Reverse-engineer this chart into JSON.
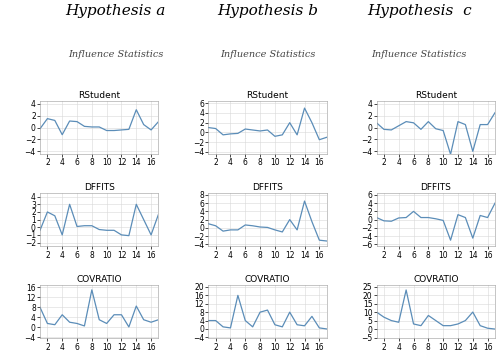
{
  "col_titles": [
    "Hypothesis a",
    "Hypothesis b",
    "Hypothesis  c"
  ],
  "subtitle": "Influence Statistics",
  "plot_titles": [
    "RStudent",
    "DFFITS",
    "COVRATIO"
  ],
  "x": [
    1,
    2,
    3,
    4,
    5,
    6,
    7,
    8,
    9,
    10,
    11,
    12,
    13,
    14,
    15,
    16,
    17
  ],
  "ha_rstudent": [
    -0.2,
    1.5,
    1.2,
    -1.2,
    1.1,
    1.0,
    0.2,
    0.1,
    0.1,
    -0.5,
    -0.5,
    -0.4,
    -0.3,
    3.0,
    0.5,
    -0.4,
    1.0
  ],
  "ha_dffits": [
    -0.4,
    2.0,
    1.5,
    -1.0,
    3.0,
    0.1,
    0.2,
    0.2,
    -0.3,
    -0.4,
    -0.4,
    -1.0,
    -1.1,
    3.0,
    1.0,
    -1.0,
    1.7
  ],
  "ha_covratio": [
    8.0,
    1.5,
    1.0,
    5.0,
    2.0,
    1.5,
    0.5,
    15.0,
    3.0,
    1.5,
    5.0,
    5.0,
    0.1,
    8.5,
    3.0,
    2.0,
    3.0
  ],
  "hb_rstudent": [
    1.0,
    0.8,
    -0.5,
    -0.3,
    -0.2,
    0.7,
    0.5,
    0.3,
    0.5,
    -0.8,
    -0.5,
    2.0,
    -0.5,
    5.0,
    2.0,
    -1.5,
    -1.0
  ],
  "hb_dffits": [
    1.0,
    0.5,
    -0.8,
    -0.5,
    -0.5,
    0.7,
    0.5,
    0.2,
    0.1,
    -0.5,
    -1.0,
    2.0,
    -0.5,
    6.5,
    1.5,
    -3.0,
    -3.2
  ],
  "hb_covratio": [
    4.0,
    4.0,
    1.0,
    0.5,
    16.0,
    4.0,
    1.0,
    8.0,
    9.0,
    2.0,
    1.0,
    8.0,
    2.0,
    1.5,
    6.0,
    0.5,
    0.0
  ],
  "hc_rstudent": [
    0.8,
    -0.3,
    -0.4,
    0.3,
    1.0,
    0.8,
    -0.3,
    1.0,
    -0.2,
    -0.5,
    -4.5,
    1.0,
    0.5,
    -4.0,
    0.5,
    0.5,
    2.5
  ],
  "hc_dffits": [
    0.5,
    -0.3,
    -0.4,
    0.4,
    0.5,
    2.0,
    0.5,
    0.5,
    0.2,
    -0.2,
    -5.0,
    1.2,
    0.5,
    -4.5,
    1.0,
    0.5,
    4.0
  ],
  "hc_covratio": [
    10.0,
    7.0,
    5.0,
    4.0,
    23.0,
    3.0,
    2.0,
    8.0,
    5.0,
    2.0,
    2.0,
    3.0,
    5.0,
    10.0,
    2.0,
    0.5,
    0.0
  ],
  "line_color": "#5b8db8",
  "bg_color": "#ffffff",
  "grid_color": "#d8d8d8",
  "title_fontsize": 11,
  "subtitle_fontsize": 7,
  "plot_title_fontsize": 6.5,
  "tick_fontsize": 5.5,
  "ytick_configs": {
    "ha_rs": [
      -4,
      -2,
      0,
      2,
      4
    ],
    "ha_df": [
      -2,
      -1,
      0,
      1,
      2,
      3,
      4
    ],
    "ha_cv": [
      -4,
      0,
      4,
      8,
      12,
      16
    ],
    "hb_rs": [
      -4,
      -2,
      0,
      2,
      4,
      6
    ],
    "hb_df": [
      -4,
      -2,
      0,
      2,
      4,
      6,
      8
    ],
    "hb_cv": [
      -4,
      0,
      4,
      8,
      12,
      16,
      20
    ],
    "hc_rs": [
      -4,
      -2,
      0,
      2,
      4
    ],
    "hc_df": [
      -6,
      -4,
      -2,
      0,
      2,
      4,
      6
    ],
    "hc_cv": [
      -5,
      0,
      5,
      10,
      15,
      20,
      25
    ]
  },
  "ylim_rstudent_a": [
    -4.5,
    4.5
  ],
  "ylim_dffits_a": [
    -2.5,
    4.5
  ],
  "ylim_covratio_a": [
    -4.5,
    17
  ],
  "ylim_rstudent_b": [
    -4.5,
    6.5
  ],
  "ylim_dffits_b": [
    -4.5,
    8.5
  ],
  "ylim_covratio_b": [
    -4.5,
    21
  ],
  "ylim_rstudent_c": [
    -4.5,
    4.5
  ],
  "ylim_dffits_c": [
    -6.5,
    6.5
  ],
  "ylim_covratio_c": [
    -5.5,
    26
  ]
}
